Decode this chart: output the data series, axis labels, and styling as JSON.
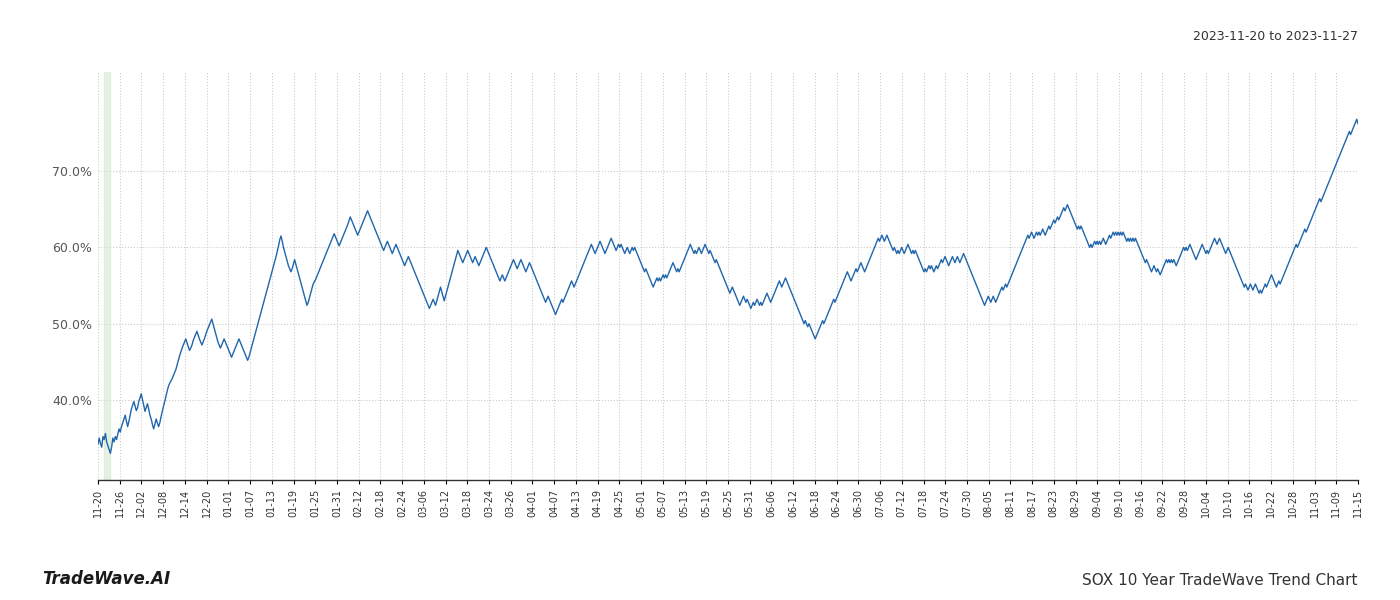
{
  "title_top_right": "2023-11-20 to 2023-11-27",
  "title_bottom_right": "SOX 10 Year TradeWave Trend Chart",
  "title_bottom_left": "TradeWave.AI",
  "line_color": "#2166ac",
  "line_width": 1.0,
  "highlight_color": "#d4e8d0",
  "highlight_alpha": 0.6,
  "background_color": "#ffffff",
  "grid_color": "#cccccc",
  "grid_style": ":",
  "ylim": [
    0.295,
    0.83
  ],
  "yticks": [
    0.4,
    0.5,
    0.6,
    0.7
  ],
  "x_labels": [
    "11-20",
    "11-26",
    "12-02",
    "12-08",
    "12-14",
    "12-20",
    "01-01",
    "01-07",
    "01-13",
    "01-19",
    "01-25",
    "01-31",
    "02-12",
    "02-18",
    "02-24",
    "03-06",
    "03-12",
    "03-18",
    "03-24",
    "03-26",
    "04-01",
    "04-07",
    "04-13",
    "04-19",
    "04-25",
    "05-01",
    "05-07",
    "05-13",
    "05-19",
    "05-25",
    "05-31",
    "06-06",
    "06-12",
    "06-18",
    "06-24",
    "06-30",
    "07-06",
    "07-12",
    "07-18",
    "07-24",
    "07-30",
    "08-05",
    "08-11",
    "08-17",
    "08-23",
    "08-29",
    "09-04",
    "09-10",
    "09-16",
    "09-22",
    "09-28",
    "10-04",
    "10-10",
    "10-16",
    "10-22",
    "10-28",
    "11-03",
    "11-09",
    "11-15"
  ],
  "values": [
    0.342,
    0.35,
    0.343,
    0.338,
    0.352,
    0.348,
    0.356,
    0.345,
    0.34,
    0.335,
    0.33,
    0.338,
    0.35,
    0.345,
    0.352,
    0.348,
    0.355,
    0.362,
    0.358,
    0.365,
    0.37,
    0.375,
    0.38,
    0.372,
    0.365,
    0.372,
    0.38,
    0.388,
    0.393,
    0.398,
    0.392,
    0.386,
    0.39,
    0.398,
    0.403,
    0.408,
    0.4,
    0.393,
    0.385,
    0.39,
    0.395,
    0.388,
    0.38,
    0.375,
    0.368,
    0.362,
    0.368,
    0.375,
    0.37,
    0.365,
    0.37,
    0.378,
    0.385,
    0.392,
    0.398,
    0.405,
    0.412,
    0.418,
    0.422,
    0.425,
    0.428,
    0.432,
    0.436,
    0.44,
    0.446,
    0.452,
    0.458,
    0.463,
    0.468,
    0.472,
    0.476,
    0.48,
    0.475,
    0.47,
    0.465,
    0.468,
    0.472,
    0.478,
    0.482,
    0.486,
    0.49,
    0.485,
    0.48,
    0.476,
    0.472,
    0.476,
    0.48,
    0.485,
    0.49,
    0.494,
    0.498,
    0.502,
    0.506,
    0.5,
    0.494,
    0.488,
    0.482,
    0.476,
    0.472,
    0.468,
    0.472,
    0.476,
    0.48,
    0.476,
    0.472,
    0.468,
    0.464,
    0.46,
    0.456,
    0.46,
    0.464,
    0.468,
    0.472,
    0.476,
    0.48,
    0.476,
    0.472,
    0.468,
    0.464,
    0.46,
    0.456,
    0.452,
    0.456,
    0.462,
    0.468,
    0.474,
    0.48,
    0.486,
    0.492,
    0.498,
    0.504,
    0.51,
    0.516,
    0.522,
    0.528,
    0.534,
    0.54,
    0.546,
    0.552,
    0.558,
    0.564,
    0.57,
    0.576,
    0.582,
    0.588,
    0.595,
    0.602,
    0.61,
    0.615,
    0.608,
    0.6,
    0.594,
    0.588,
    0.582,
    0.576,
    0.572,
    0.568,
    0.572,
    0.578,
    0.584,
    0.578,
    0.572,
    0.566,
    0.56,
    0.554,
    0.548,
    0.542,
    0.536,
    0.53,
    0.524,
    0.528,
    0.534,
    0.54,
    0.546,
    0.552,
    0.555,
    0.558,
    0.562,
    0.566,
    0.57,
    0.574,
    0.578,
    0.582,
    0.586,
    0.59,
    0.594,
    0.598,
    0.602,
    0.606,
    0.61,
    0.614,
    0.618,
    0.614,
    0.61,
    0.606,
    0.602,
    0.606,
    0.61,
    0.614,
    0.618,
    0.622,
    0.626,
    0.63,
    0.635,
    0.64,
    0.636,
    0.632,
    0.628,
    0.624,
    0.62,
    0.616,
    0.62,
    0.624,
    0.628,
    0.632,
    0.636,
    0.64,
    0.644,
    0.648,
    0.644,
    0.64,
    0.636,
    0.632,
    0.628,
    0.624,
    0.62,
    0.616,
    0.612,
    0.608,
    0.604,
    0.6,
    0.596,
    0.6,
    0.604,
    0.608,
    0.604,
    0.6,
    0.596,
    0.592,
    0.596,
    0.6,
    0.604,
    0.6,
    0.596,
    0.592,
    0.588,
    0.584,
    0.58,
    0.576,
    0.58,
    0.584,
    0.588,
    0.584,
    0.58,
    0.576,
    0.572,
    0.568,
    0.564,
    0.56,
    0.556,
    0.552,
    0.548,
    0.544,
    0.54,
    0.536,
    0.532,
    0.528,
    0.524,
    0.52,
    0.524,
    0.528,
    0.532,
    0.528,
    0.524,
    0.53,
    0.536,
    0.542,
    0.548,
    0.542,
    0.536,
    0.53,
    0.536,
    0.542,
    0.548,
    0.554,
    0.56,
    0.566,
    0.572,
    0.578,
    0.584,
    0.59,
    0.596,
    0.592,
    0.588,
    0.584,
    0.58,
    0.584,
    0.588,
    0.592,
    0.596,
    0.592,
    0.588,
    0.584,
    0.58,
    0.584,
    0.588,
    0.584,
    0.58,
    0.576,
    0.58,
    0.584,
    0.588,
    0.592,
    0.596,
    0.6,
    0.596,
    0.592,
    0.588,
    0.584,
    0.58,
    0.576,
    0.572,
    0.568,
    0.564,
    0.56,
    0.556,
    0.56,
    0.564,
    0.56,
    0.556,
    0.56,
    0.564,
    0.568,
    0.572,
    0.576,
    0.58,
    0.584,
    0.58,
    0.576,
    0.572,
    0.576,
    0.58,
    0.584,
    0.58,
    0.576,
    0.572,
    0.568,
    0.572,
    0.576,
    0.58,
    0.576,
    0.572,
    0.568,
    0.564,
    0.56,
    0.556,
    0.552,
    0.548,
    0.544,
    0.54,
    0.536,
    0.532,
    0.528,
    0.532,
    0.536,
    0.532,
    0.528,
    0.524,
    0.52,
    0.516,
    0.512,
    0.516,
    0.52,
    0.524,
    0.528,
    0.532,
    0.528,
    0.532,
    0.536,
    0.54,
    0.544,
    0.548,
    0.552,
    0.556,
    0.552,
    0.548,
    0.552,
    0.556,
    0.56,
    0.564,
    0.568,
    0.572,
    0.576,
    0.58,
    0.584,
    0.588,
    0.592,
    0.596,
    0.6,
    0.604,
    0.6,
    0.596,
    0.592,
    0.596,
    0.6,
    0.604,
    0.608,
    0.604,
    0.6,
    0.596,
    0.592,
    0.596,
    0.6,
    0.604,
    0.608,
    0.612,
    0.608,
    0.604,
    0.6,
    0.596,
    0.6,
    0.604,
    0.6,
    0.604,
    0.6,
    0.596,
    0.592,
    0.596,
    0.6,
    0.596,
    0.592,
    0.596,
    0.6,
    0.596,
    0.6,
    0.596,
    0.592,
    0.588,
    0.584,
    0.58,
    0.576,
    0.572,
    0.568,
    0.572,
    0.568,
    0.564,
    0.56,
    0.556,
    0.552,
    0.548,
    0.552,
    0.556,
    0.56,
    0.556,
    0.56,
    0.556,
    0.56,
    0.564,
    0.56,
    0.564,
    0.56,
    0.564,
    0.568,
    0.572,
    0.576,
    0.58,
    0.576,
    0.572,
    0.568,
    0.572,
    0.568,
    0.572,
    0.576,
    0.58,
    0.584,
    0.588,
    0.592,
    0.596,
    0.6,
    0.604,
    0.6,
    0.596,
    0.592,
    0.596,
    0.592,
    0.596,
    0.6,
    0.596,
    0.592,
    0.596,
    0.6,
    0.604,
    0.6,
    0.596,
    0.592,
    0.596,
    0.592,
    0.588,
    0.584,
    0.58,
    0.584,
    0.58,
    0.576,
    0.572,
    0.568,
    0.564,
    0.56,
    0.556,
    0.552,
    0.548,
    0.544,
    0.54,
    0.544,
    0.548,
    0.544,
    0.54,
    0.536,
    0.532,
    0.528,
    0.524,
    0.528,
    0.532,
    0.536,
    0.532,
    0.528,
    0.532,
    0.528,
    0.524,
    0.52,
    0.524,
    0.528,
    0.524,
    0.528,
    0.532,
    0.528,
    0.524,
    0.528,
    0.524,
    0.528,
    0.532,
    0.536,
    0.54,
    0.536,
    0.532,
    0.528,
    0.532,
    0.536,
    0.54,
    0.544,
    0.548,
    0.552,
    0.556,
    0.552,
    0.548,
    0.552,
    0.556,
    0.56,
    0.556,
    0.552,
    0.548,
    0.544,
    0.54,
    0.536,
    0.532,
    0.528,
    0.524,
    0.52,
    0.516,
    0.512,
    0.508,
    0.504,
    0.5,
    0.504,
    0.5,
    0.496,
    0.5,
    0.496,
    0.492,
    0.488,
    0.484,
    0.48,
    0.484,
    0.488,
    0.492,
    0.496,
    0.5,
    0.504,
    0.5,
    0.504,
    0.508,
    0.512,
    0.516,
    0.52,
    0.524,
    0.528,
    0.532,
    0.528,
    0.532,
    0.536,
    0.54,
    0.544,
    0.548,
    0.552,
    0.556,
    0.56,
    0.564,
    0.568,
    0.564,
    0.56,
    0.556,
    0.56,
    0.564,
    0.568,
    0.572,
    0.568,
    0.572,
    0.576,
    0.58,
    0.576,
    0.572,
    0.568,
    0.572,
    0.576,
    0.58,
    0.584,
    0.588,
    0.592,
    0.596,
    0.6,
    0.604,
    0.608,
    0.612,
    0.608,
    0.612,
    0.616,
    0.612,
    0.608,
    0.612,
    0.616,
    0.612,
    0.608,
    0.604,
    0.6,
    0.596,
    0.6,
    0.596,
    0.592,
    0.596,
    0.592,
    0.596,
    0.6,
    0.596,
    0.592,
    0.596,
    0.6,
    0.604,
    0.6,
    0.596,
    0.592,
    0.596,
    0.592,
    0.596,
    0.592,
    0.588,
    0.584,
    0.58,
    0.576,
    0.572,
    0.568,
    0.572,
    0.568,
    0.572,
    0.576,
    0.572,
    0.576,
    0.572,
    0.568,
    0.572,
    0.576,
    0.572,
    0.576,
    0.58,
    0.584,
    0.58,
    0.584,
    0.588,
    0.584,
    0.58,
    0.576,
    0.58,
    0.584,
    0.588,
    0.584,
    0.58,
    0.584,
    0.588,
    0.584,
    0.58,
    0.584,
    0.588,
    0.592,
    0.588,
    0.584,
    0.58,
    0.576,
    0.572,
    0.568,
    0.564,
    0.56,
    0.556,
    0.552,
    0.548,
    0.544,
    0.54,
    0.536,
    0.532,
    0.528,
    0.524,
    0.528,
    0.532,
    0.536,
    0.532,
    0.528,
    0.532,
    0.536,
    0.532,
    0.528,
    0.532,
    0.536,
    0.54,
    0.544,
    0.548,
    0.544,
    0.548,
    0.552,
    0.548,
    0.552,
    0.556,
    0.56,
    0.564,
    0.568,
    0.572,
    0.576,
    0.58,
    0.584,
    0.588,
    0.592,
    0.596,
    0.6,
    0.604,
    0.608,
    0.612,
    0.616,
    0.612,
    0.616,
    0.62,
    0.616,
    0.612,
    0.616,
    0.62,
    0.616,
    0.62,
    0.616,
    0.62,
    0.624,
    0.62,
    0.616,
    0.62,
    0.624,
    0.628,
    0.624,
    0.628,
    0.632,
    0.636,
    0.632,
    0.636,
    0.64,
    0.636,
    0.64,
    0.644,
    0.648,
    0.652,
    0.648,
    0.652,
    0.656,
    0.652,
    0.648,
    0.644,
    0.64,
    0.636,
    0.632,
    0.628,
    0.624,
    0.628,
    0.624,
    0.628,
    0.624,
    0.62,
    0.616,
    0.612,
    0.608,
    0.604,
    0.6,
    0.604,
    0.6,
    0.604,
    0.608,
    0.604,
    0.608,
    0.604,
    0.608,
    0.604,
    0.608,
    0.612,
    0.608,
    0.604,
    0.608,
    0.612,
    0.616,
    0.612,
    0.616,
    0.62,
    0.616,
    0.62,
    0.616,
    0.62,
    0.616,
    0.62,
    0.616,
    0.62,
    0.616,
    0.612,
    0.608,
    0.612,
    0.608,
    0.612,
    0.608,
    0.612,
    0.608,
    0.612,
    0.608,
    0.604,
    0.6,
    0.596,
    0.592,
    0.588,
    0.584,
    0.58,
    0.584,
    0.58,
    0.576,
    0.572,
    0.568,
    0.572,
    0.576,
    0.572,
    0.568,
    0.572,
    0.568,
    0.564,
    0.568,
    0.572,
    0.576,
    0.58,
    0.584,
    0.58,
    0.584,
    0.58,
    0.584,
    0.58,
    0.584,
    0.58,
    0.576,
    0.58,
    0.584,
    0.588,
    0.592,
    0.596,
    0.6,
    0.596,
    0.6,
    0.596,
    0.6,
    0.604,
    0.6,
    0.596,
    0.592,
    0.588,
    0.584,
    0.588,
    0.592,
    0.596,
    0.6,
    0.604,
    0.6,
    0.596,
    0.592,
    0.596,
    0.592,
    0.596,
    0.6,
    0.604,
    0.608,
    0.612,
    0.608,
    0.604,
    0.608,
    0.612,
    0.608,
    0.604,
    0.6,
    0.596,
    0.592,
    0.596,
    0.6,
    0.596,
    0.592,
    0.588,
    0.584,
    0.58,
    0.576,
    0.572,
    0.568,
    0.564,
    0.56,
    0.556,
    0.552,
    0.548,
    0.552,
    0.548,
    0.544,
    0.548,
    0.552,
    0.548,
    0.544,
    0.548,
    0.552,
    0.548,
    0.544,
    0.54,
    0.544,
    0.54,
    0.544,
    0.548,
    0.552,
    0.548,
    0.552,
    0.556,
    0.56,
    0.564,
    0.56,
    0.556,
    0.552,
    0.548,
    0.552,
    0.556,
    0.552,
    0.556,
    0.56,
    0.564,
    0.568,
    0.572,
    0.576,
    0.58,
    0.584,
    0.588,
    0.592,
    0.596,
    0.6,
    0.604,
    0.6,
    0.604,
    0.608,
    0.612,
    0.616,
    0.62,
    0.624,
    0.62,
    0.624,
    0.628,
    0.632,
    0.636,
    0.64,
    0.644,
    0.648,
    0.652,
    0.656,
    0.66,
    0.664,
    0.66,
    0.664,
    0.668,
    0.672,
    0.676,
    0.68,
    0.684,
    0.688,
    0.692,
    0.696,
    0.7,
    0.704,
    0.708,
    0.712,
    0.716,
    0.72,
    0.724,
    0.728,
    0.732,
    0.736,
    0.74,
    0.744,
    0.748,
    0.752,
    0.748,
    0.752,
    0.756,
    0.76,
    0.764,
    0.768,
    0.762
  ]
}
